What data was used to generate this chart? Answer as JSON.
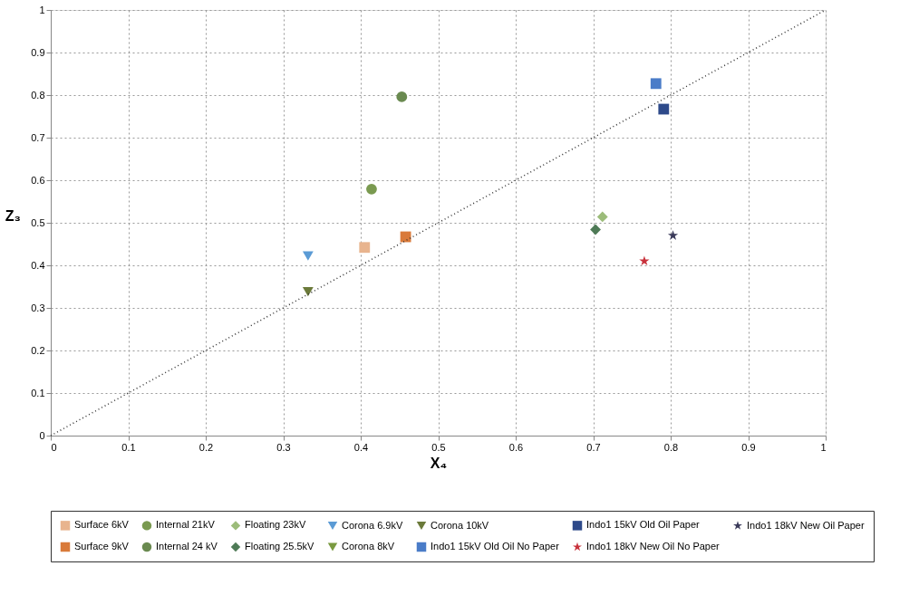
{
  "chart_data": {
    "type": "scatter",
    "xlabel": "X₄",
    "ylabel": "Z₃",
    "xlim": [
      0,
      1
    ],
    "ylim": [
      0,
      1
    ],
    "xticks": [
      0,
      0.1,
      0.2,
      0.3,
      0.4,
      0.5,
      0.6,
      0.7,
      0.8,
      0.9,
      1
    ],
    "yticks": [
      0,
      0.1,
      0.2,
      0.3,
      0.4,
      0.5,
      0.6,
      0.7,
      0.8,
      0.9,
      1
    ],
    "grid": true,
    "legend": "bottom",
    "series": [
      {
        "name": "Surface 6kV",
        "color": "#e8b48e",
        "marker": "square",
        "x": [
          0.405
        ],
        "values": [
          0.442
        ]
      },
      {
        "name": "Internal 21kV",
        "color": "#7a9a50",
        "marker": "circle",
        "x": [
          0.414
        ],
        "values": [
          0.579
        ]
      },
      {
        "name": "Floating 23kV",
        "color": "#9cbc7a",
        "marker": "diamond",
        "x": [
          0.712
        ],
        "values": [
          0.514
        ]
      },
      {
        "name": "Corona 6.9kV",
        "color": "#5b9bd5",
        "marker": "triangle",
        "x": [
          0.332
        ],
        "values": [
          0.422
        ]
      },
      {
        "name": "Corona 10kV",
        "color": "#6b7a3a",
        "marker": "triangle",
        "x": [
          0.332
        ],
        "values": [
          0.338
        ]
      },
      {
        "name": "Indo1 15kV Old Oil Paper",
        "color": "#2e4a8a",
        "marker": "square",
        "x": [
          0.791
        ],
        "values": [
          0.767
        ]
      },
      {
        "name": "Indo1 18kV New Oil Paper",
        "color": "#3a3a5a",
        "marker": "star",
        "x": [
          0.803
        ],
        "values": [
          0.47
        ]
      },
      {
        "name": "Surface 9kV",
        "color": "#d97a3a",
        "marker": "square",
        "x": [
          0.458
        ],
        "values": [
          0.467
        ]
      },
      {
        "name": "Internal 24 kV",
        "color": "#6a8a50",
        "marker": "circle",
        "x": [
          0.453
        ],
        "values": [
          0.796
        ]
      },
      {
        "name": "Floating 25.5kV",
        "color": "#4e7a56",
        "marker": "diamond",
        "x": [
          0.703
        ],
        "values": [
          0.484
        ]
      },
      {
        "name": "Corona 8kV",
        "color": "#7a9a40",
        "marker": "triangle",
        "x": [
          null
        ],
        "values": [
          null
        ]
      },
      {
        "name": "Indo1 15kV Old Oil No Paper",
        "color": "#4a7cc8",
        "marker": "square",
        "x": [
          0.781
        ],
        "values": [
          0.827
        ]
      },
      {
        "name": "Indo1 18kV New Oil No Paper",
        "color": "#c8323c",
        "marker": "star",
        "x": [
          0.766
        ],
        "values": [
          0.41
        ]
      },
      {
        "type": "line",
        "color": "#333333",
        "line_style": "dotted",
        "x": [
          0,
          1
        ],
        "values": [
          0,
          1
        ]
      }
    ]
  }
}
